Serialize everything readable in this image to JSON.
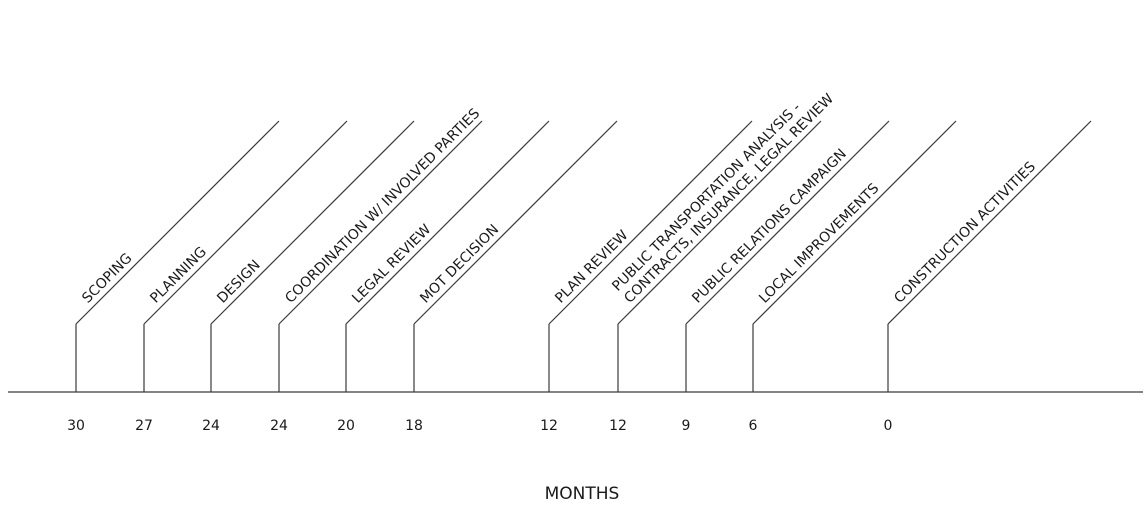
{
  "axis_title": "MONTHS",
  "colors": {
    "line": "#3a3a3a",
    "text": "#1a1a1a",
    "background": "#ffffff"
  },
  "milestones": [
    {
      "month": "30",
      "label": [
        "SCOPING"
      ]
    },
    {
      "month": "27",
      "label": [
        "PLANNING"
      ]
    },
    {
      "month": "24",
      "label": [
        "DESIGN"
      ]
    },
    {
      "month": "24",
      "label": [
        "COORDINATION W/ INVOLVED PARTIES"
      ]
    },
    {
      "month": "20",
      "label": [
        "LEGAL REVIEW"
      ]
    },
    {
      "month": "18",
      "label": [
        "MOT DECISION"
      ]
    },
    {
      "month": "12",
      "label": [
        "PLAN REVIEW"
      ]
    },
    {
      "month": "12",
      "label": [
        "PUBLIC TRANSPORTATION ANALYSIS -",
        "CONTRACTS, INSURANCE, LEGAL REVIEW"
      ]
    },
    {
      "month": "9",
      "label": [
        "PUBLIC RELATIONS CAMPAIGN"
      ]
    },
    {
      "month": "6",
      "label": [
        "LOCAL IMPROVEMENTS"
      ]
    },
    {
      "month": "0",
      "label": [
        "CONSTRUCTION ACTIVITIES"
      ]
    }
  ]
}
